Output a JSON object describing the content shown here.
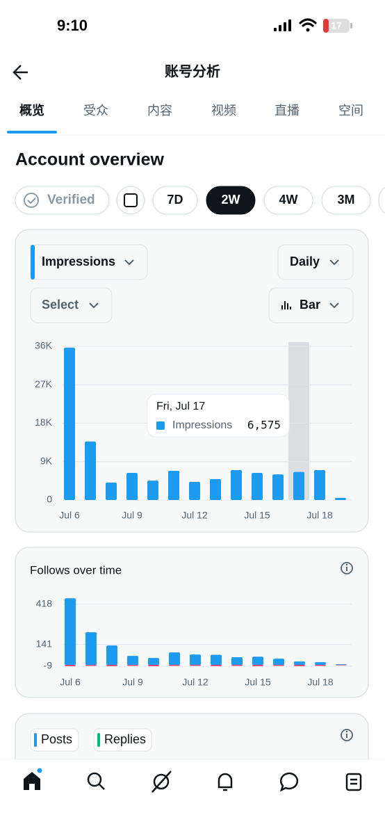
{
  "status_bar": {
    "time": "9:10",
    "battery": "17"
  },
  "header": {
    "title": "账号分析"
  },
  "tabs": [
    "概览",
    "受众",
    "内容",
    "视频",
    "直播",
    "空间"
  ],
  "section_title": "Account overview",
  "filters": {
    "verified": "Verified",
    "ranges": [
      "7D",
      "2W",
      "4W",
      "3M"
    ]
  },
  "controls": {
    "metric": "Impressions",
    "interval": "Daily",
    "select": "Select",
    "chart_type": "Bar"
  },
  "chart_data": [
    {
      "type": "bar",
      "categories": [
        "Jul 6",
        null,
        null,
        "Jul 9",
        null,
        null,
        "Jul 12",
        null,
        null,
        "Jul 15",
        null,
        null,
        "Jul 18",
        null
      ],
      "series": [
        {
          "name": "Impressions",
          "color": "#1d9bf0",
          "values": [
            35700,
            13700,
            4100,
            6350,
            4550,
            6850,
            4250,
            4900,
            7000,
            6350,
            6000,
            6575,
            7000,
            500
          ]
        }
      ],
      "ylim": [
        0,
        36000
      ],
      "yticks": [
        0,
        {
          "value": 9000,
          "label": "9K"
        },
        {
          "value": 18000,
          "label": "18K"
        },
        {
          "value": 27000,
          "label": "27K"
        },
        {
          "value": 36000,
          "label": "36K"
        }
      ],
      "grid": true,
      "tooltip": {
        "index": 11,
        "title": "Fri, Jul 17",
        "label": "6,575"
      }
    },
    {
      "type": "bar",
      "title": "Follows over time",
      "categories": [
        "Jul 6",
        null,
        null,
        "Jul 9",
        null,
        null,
        "Jul 12",
        null,
        null,
        "Jul 15",
        null,
        null,
        "Jul 18",
        null
      ],
      "series": [
        {
          "color": "#1d9bf0",
          "values": [
            459,
            225,
            134,
            62,
            48,
            86,
            72,
            70,
            53,
            57,
            43,
            24,
            19,
            5
          ]
        },
        {
          "color": "#e0245e",
          "values": [
            -8,
            -6,
            -8,
            -6,
            -8,
            -6,
            -6,
            -8,
            -6,
            -8,
            -6,
            -8,
            -6,
            -3
          ]
        }
      ],
      "ylim": [
        -9,
        460
      ],
      "yticks": [
        -9,
        141,
        418
      ],
      "grid": true
    }
  ],
  "bottom_card": {
    "toggles": [
      {
        "label": "Posts",
        "color": "#1d9bf0"
      },
      {
        "label": "Replies",
        "color": "#00ba7c"
      }
    ]
  }
}
